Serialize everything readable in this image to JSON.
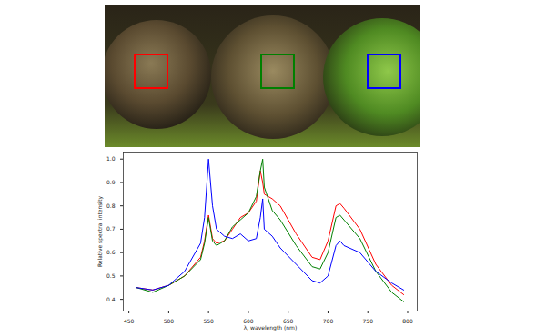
{
  "chart_data": {
    "type": "line",
    "x_label": "λ, wavelength (nm)",
    "y_label": "Relative spectral intensity",
    "x": [
      460,
      480,
      500,
      520,
      540,
      545,
      550,
      555,
      560,
      570,
      580,
      590,
      600,
      610,
      615,
      618,
      620,
      630,
      640,
      660,
      680,
      690,
      700,
      710,
      715,
      720,
      740,
      760,
      780,
      795
    ],
    "series": [
      {
        "color": "red",
        "values": [
          0.45,
          0.44,
          0.46,
          0.5,
          0.58,
          0.65,
          0.76,
          0.66,
          0.64,
          0.65,
          0.7,
          0.75,
          0.77,
          0.82,
          0.95,
          0.9,
          0.85,
          0.83,
          0.8,
          0.68,
          0.58,
          0.57,
          0.65,
          0.8,
          0.81,
          0.79,
          0.7,
          0.55,
          0.46,
          0.42
        ]
      },
      {
        "color": "green",
        "values": [
          0.45,
          0.43,
          0.46,
          0.5,
          0.57,
          0.64,
          0.75,
          0.65,
          0.63,
          0.65,
          0.71,
          0.74,
          0.77,
          0.84,
          0.95,
          1.0,
          0.88,
          0.78,
          0.74,
          0.63,
          0.54,
          0.53,
          0.6,
          0.75,
          0.76,
          0.74,
          0.66,
          0.52,
          0.43,
          0.39
        ]
      },
      {
        "color": "blue",
        "values": [
          0.45,
          0.44,
          0.46,
          0.52,
          0.64,
          0.75,
          1.0,
          0.8,
          0.7,
          0.67,
          0.66,
          0.68,
          0.65,
          0.66,
          0.75,
          0.83,
          0.7,
          0.67,
          0.62,
          0.55,
          0.48,
          0.47,
          0.5,
          0.63,
          0.65,
          0.63,
          0.6,
          0.52,
          0.47,
          0.44
        ]
      }
    ],
    "xlim": [
      443,
      812
    ],
    "xticks": [
      450,
      500,
      550,
      600,
      650,
      700,
      750,
      800
    ],
    "ylim": [
      0.35,
      1.03
    ],
    "yticks": [
      0.4,
      0.5,
      0.6,
      0.7,
      0.8,
      0.9,
      {
        "value": 1.0,
        "label": "1.0"
      }
    ],
    "grid": false
  }
}
